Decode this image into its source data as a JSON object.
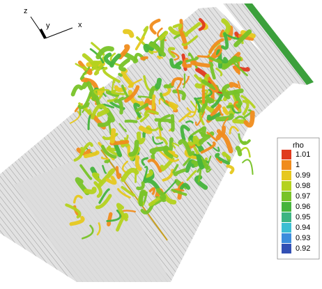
{
  "axes_triad": {
    "z": "z",
    "y": "y",
    "x": "x"
  },
  "legend": {
    "title": "rho",
    "entries": [
      {
        "label": "1.01",
        "color": "#e03a1e"
      },
      {
        "label": "1",
        "color": "#f08c1c"
      },
      {
        "label": "0.99",
        "color": "#e6c81e"
      },
      {
        "label": "0.98",
        "color": "#b4d21e"
      },
      {
        "label": "0.97",
        "color": "#78c328"
      },
      {
        "label": "0.96",
        "color": "#46b43c"
      },
      {
        "label": "0.95",
        "color": "#3cb482"
      },
      {
        "label": "0.94",
        "color": "#3cbed2"
      },
      {
        "label": "0.93",
        "color": "#3c8cdc"
      },
      {
        "label": "0.92",
        "color": "#3250b4"
      }
    ]
  }
}
